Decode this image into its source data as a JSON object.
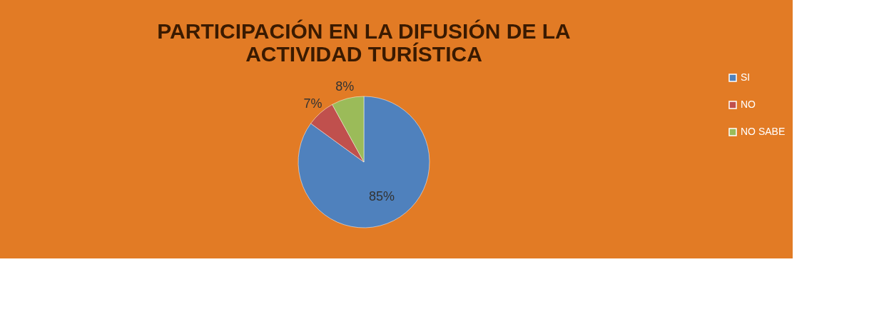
{
  "chart_data": {
    "type": "pie",
    "title": "PARTICIPACIÓN EN LA DIFUSIÓN DE LA ACTIVIDAD TURÍSTICA",
    "categories": [
      "SI",
      "NO",
      "NO SABE"
    ],
    "values": [
      85,
      7,
      8
    ],
    "colors": [
      "#4f81bd",
      "#c0504d",
      "#9bbb59"
    ],
    "value_labels": [
      "85%",
      "7%",
      "8%"
    ],
    "legend": "right"
  }
}
